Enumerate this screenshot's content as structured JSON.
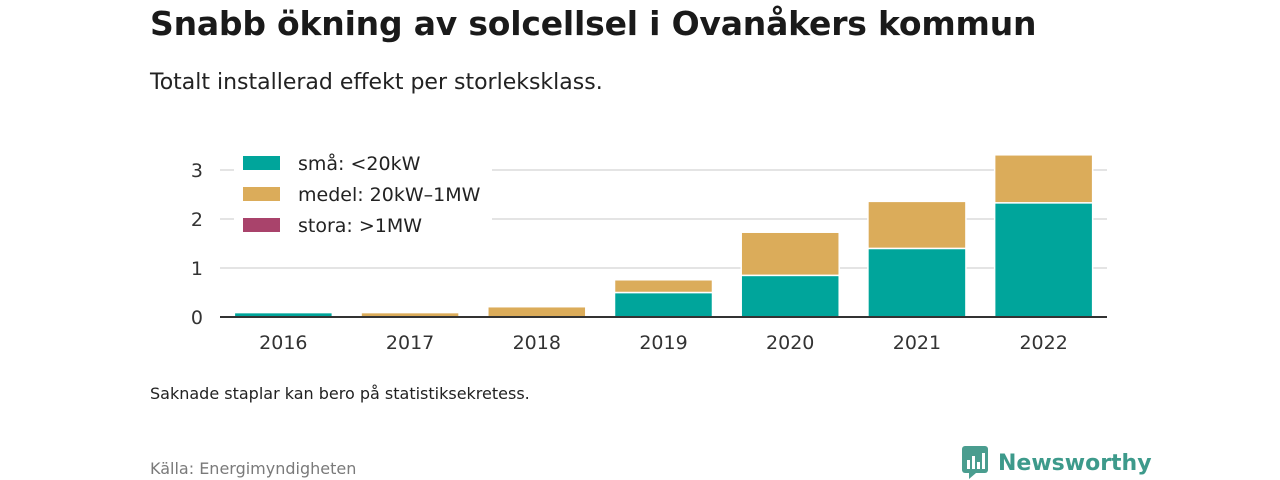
{
  "title": "Snabb ökning av solcellsel i Ovanåkers kommun",
  "subtitle": "Totalt installerad effekt per storleksklass.",
  "note": "Saknade staplar kan bero på statistiksekretess.",
  "source": "Källa: Energimyndigheten",
  "brand": {
    "name": "Newsworthy",
    "logo_icon": "newsworthy-logo-icon",
    "color": "#3d9a8b"
  },
  "chart_data": {
    "type": "bar",
    "stacked": true,
    "categories": [
      "2016",
      "2017",
      "2018",
      "2019",
      "2020",
      "2021",
      "2022"
    ],
    "series": [
      {
        "name": "små: <20kW",
        "color": "#00a59b",
        "values": [
          0.09,
          0.0,
          0.0,
          0.5,
          0.85,
          1.4,
          2.33
        ]
      },
      {
        "name": "medel: 20kW–1MW",
        "color": "#dbac5a",
        "values": [
          0.0,
          0.09,
          0.21,
          0.26,
          0.88,
          0.96,
          0.98
        ]
      },
      {
        "name": "stora: >1MW",
        "color": "#a9436b",
        "values": [
          0,
          0,
          0,
          0,
          0,
          0,
          0
        ]
      }
    ],
    "yticks": [
      0,
      1,
      2,
      3
    ],
    "ylim": [
      0,
      3.4
    ],
    "grid": true,
    "legend": "top-left"
  }
}
